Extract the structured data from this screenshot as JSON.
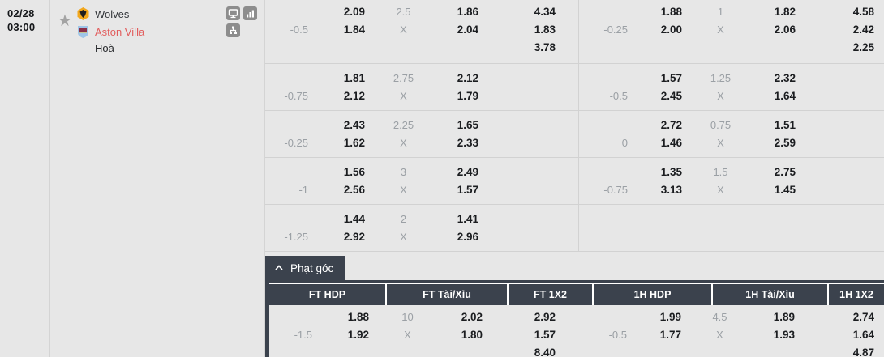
{
  "match": {
    "date": "02/28",
    "time": "03:00",
    "home_team": "Wolves",
    "away_team": "Aston Villa",
    "draw_label": "Hoà"
  },
  "labels": {
    "draw_x": "X"
  },
  "icons": {
    "favorite": "star",
    "live_tv": "monitor",
    "stats": "bar-chart",
    "lineup": "org-chart",
    "collapse": "chevron-up"
  },
  "colors": {
    "header_dark": "#3b424d",
    "away_team_red": "#e25d5d",
    "icon_gray": "#8d8d8d",
    "background": "#e7e7e7"
  },
  "main_odds": {
    "rows": [
      {
        "left": {
          "hdp": "-0.5",
          "hdp_odds": [
            "2.09",
            "1.84"
          ],
          "line": "2.5",
          "ou_odds": [
            "1.86",
            "2.04"
          ],
          "x12": [
            "4.34",
            "1.83",
            "3.78"
          ]
        },
        "right": {
          "hdp": "-0.25",
          "hdp_odds": [
            "1.88",
            "2.00"
          ],
          "line": "1",
          "ou_odds": [
            "1.82",
            "2.06"
          ],
          "x12": [
            "4.58",
            "2.42",
            "2.25"
          ]
        }
      },
      {
        "left": {
          "hdp": "-0.75",
          "hdp_odds": [
            "1.81",
            "2.12"
          ],
          "line": "2.75",
          "ou_odds": [
            "2.12",
            "1.79"
          ],
          "x12": []
        },
        "right": {
          "hdp": "-0.5",
          "hdp_odds": [
            "1.57",
            "2.45"
          ],
          "line": "1.25",
          "ou_odds": [
            "2.32",
            "1.64"
          ],
          "x12": []
        }
      },
      {
        "left": {
          "hdp": "-0.25",
          "hdp_odds": [
            "2.43",
            "1.62"
          ],
          "line": "2.25",
          "ou_odds": [
            "1.65",
            "2.33"
          ],
          "x12": []
        },
        "right": {
          "hdp": "0",
          "hdp_odds": [
            "2.72",
            "1.46"
          ],
          "line": "0.75",
          "ou_odds": [
            "1.51",
            "2.59"
          ],
          "x12": []
        }
      },
      {
        "left": {
          "hdp": "-1",
          "hdp_odds": [
            "1.56",
            "2.56"
          ],
          "line": "3",
          "ou_odds": [
            "2.49",
            "1.57"
          ],
          "x12": []
        },
        "right": {
          "hdp": "-0.75",
          "hdp_odds": [
            "1.35",
            "3.13"
          ],
          "line": "1.5",
          "ou_odds": [
            "2.75",
            "1.45"
          ],
          "x12": []
        }
      },
      {
        "left": {
          "hdp": "-1.25",
          "hdp_odds": [
            "1.44",
            "2.92"
          ],
          "line": "2",
          "ou_odds": [
            "1.41",
            "2.96"
          ],
          "x12": []
        },
        "right": null
      }
    ]
  },
  "corners": {
    "title": "Phạt góc",
    "headers": [
      "FT HDP",
      "FT Tài/Xỉu",
      "FT 1X2",
      "1H HDP",
      "1H Tài/Xỉu",
      "1H 1X2"
    ],
    "rows": [
      {
        "left": {
          "hdp": "-1.5",
          "hdp_odds": [
            "1.88",
            "1.92"
          ],
          "line": "10",
          "ou_odds": [
            "2.02",
            "1.80"
          ],
          "x12": [
            "2.92",
            "1.57",
            "8.40"
          ]
        },
        "right": {
          "hdp": "-0.5",
          "hdp_odds": [
            "1.99",
            "1.77"
          ],
          "line": "4.5",
          "ou_odds": [
            "1.89",
            "1.93"
          ],
          "x12": [
            "2.74",
            "1.64",
            "4.87"
          ]
        }
      }
    ]
  }
}
